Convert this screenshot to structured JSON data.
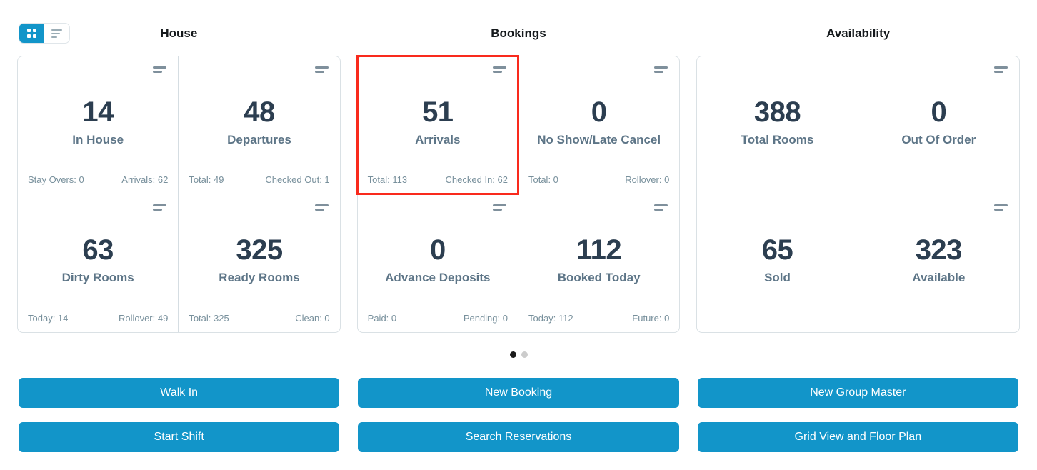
{
  "colors": {
    "accent": "#1295c9",
    "highlight": "#f92a1d",
    "value_text": "#2c3e50",
    "label_text": "#5d7587",
    "stat_text": "#78909c",
    "divider": "#d5dde2",
    "dot_active": "#1b1b1b",
    "dot_inactive": "#cccccc"
  },
  "view_toggle": {
    "buttons": [
      {
        "icon": "grid-view-icon",
        "active": true
      },
      {
        "icon": "list-view-icon",
        "active": false
      }
    ]
  },
  "sections": [
    {
      "title": "House",
      "cards": [
        {
          "value": "14",
          "label": "In House",
          "stat_left": "Stay Overs: 0",
          "stat_right": "Arrivals: 62",
          "has_icon": true,
          "highlighted": false
        },
        {
          "value": "48",
          "label": "Departures",
          "stat_left": "Total: 49",
          "stat_right": "Checked Out: 1",
          "has_icon": true,
          "highlighted": false
        },
        {
          "value": "63",
          "label": "Dirty Rooms",
          "stat_left": "Today: 14",
          "stat_right": "Rollover: 49",
          "has_icon": true,
          "highlighted": false
        },
        {
          "value": "325",
          "label": "Ready Rooms",
          "stat_left": "Total: 325",
          "stat_right": "Clean: 0",
          "has_icon": true,
          "highlighted": false
        }
      ]
    },
    {
      "title": "Bookings",
      "cards": [
        {
          "value": "51",
          "label": "Arrivals",
          "stat_left": "Total: 113",
          "stat_right": "Checked In: 62",
          "has_icon": true,
          "highlighted": true
        },
        {
          "value": "0",
          "label": "No Show/Late Cancel",
          "stat_left": "Total: 0",
          "stat_right": "Rollover: 0",
          "has_icon": true,
          "highlighted": false
        },
        {
          "value": "0",
          "label": "Advance Deposits",
          "stat_left": "Paid: 0",
          "stat_right": "Pending: 0",
          "has_icon": true,
          "highlighted": false
        },
        {
          "value": "112",
          "label": "Booked Today",
          "stat_left": "Today: 112",
          "stat_right": "Future: 0",
          "has_icon": true,
          "highlighted": false
        }
      ]
    },
    {
      "title": "Availability",
      "cards": [
        {
          "value": "388",
          "label": "Total Rooms",
          "stat_left": null,
          "stat_right": null,
          "has_icon": false,
          "highlighted": false
        },
        {
          "value": "0",
          "label": "Out Of Order",
          "stat_left": null,
          "stat_right": null,
          "has_icon": true,
          "highlighted": false
        },
        {
          "value": "65",
          "label": "Sold",
          "stat_left": null,
          "stat_right": null,
          "has_icon": false,
          "highlighted": false
        },
        {
          "value": "323",
          "label": "Available",
          "stat_left": null,
          "stat_right": null,
          "has_icon": true,
          "highlighted": false
        }
      ]
    }
  ],
  "pagination": {
    "total": 2,
    "active_index": 0
  },
  "actions": [
    [
      "Walk In",
      "New Booking",
      "New Group Master"
    ],
    [
      "Start Shift",
      "Search Reservations",
      "Grid View and Floor Plan"
    ]
  ]
}
